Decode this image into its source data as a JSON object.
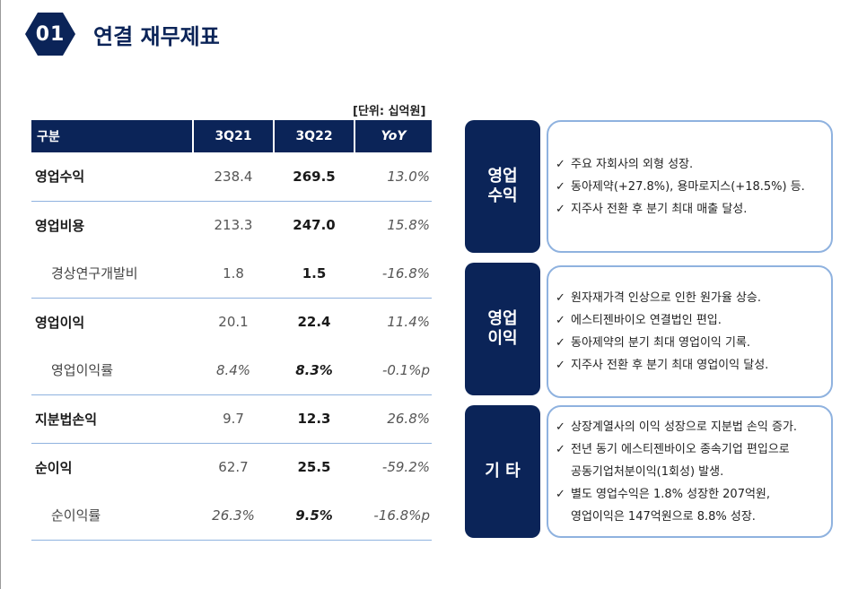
{
  "header": {
    "number": "01",
    "title": "연결 재무제표"
  },
  "unit": "[단위: 십억원]",
  "table": {
    "headers": [
      "구분",
      "3Q21",
      "3Q22",
      "YoY"
    ],
    "rows": [
      {
        "label": "영업수익",
        "prev": "238.4",
        "cur": "269.5",
        "yoy": "13.0%"
      },
      {
        "label": "영업비용",
        "prev": "213.3",
        "cur": "247.0",
        "yoy": "15.8%"
      },
      {
        "label": "경상연구개발비",
        "prev": "1.8",
        "cur": "1.5",
        "yoy": "-16.8%"
      },
      {
        "label": "영업이익",
        "prev": "20.1",
        "cur": "22.4",
        "yoy": "11.4%"
      },
      {
        "label": "영업이익률",
        "prev": "8.4%",
        "cur": "8.3%",
        "yoy": "-0.1%p"
      },
      {
        "label": "지분법손익",
        "prev": "9.7",
        "cur": "12.3",
        "yoy": "26.8%"
      },
      {
        "label": "순이익",
        "prev": "62.7",
        "cur": "25.5",
        "yoy": "-59.2%"
      },
      {
        "label": "순이익률",
        "prev": "26.3%",
        "cur": "9.5%",
        "yoy": "-16.8%p"
      }
    ]
  },
  "check_mark": "✓",
  "boxes": {
    "revenue": {
      "tag_line1": "영업",
      "tag_line2": "수익",
      "bullets": [
        "주요 자회사의 외형 성장.",
        "동아제약(+27.8%), 용마로지스(+18.5%) 등.",
        "지주사 전환 후 분기 최대 매출 달성."
      ]
    },
    "profit": {
      "tag_line1": "영업",
      "tag_line2": "이익",
      "bullets": [
        "원자재가격 인상으로 인한 원가율 상승.",
        "에스티젠바이오 연결법인 편입.",
        "동아제약의 분기 최대 영업이익 기록.",
        "지주사 전환 후 분기 최대 영업이익 달성."
      ]
    },
    "other": {
      "tag": "기 타",
      "bullet1": "상장계열사의 이익 성장으로 지분법 손익 증가.",
      "bullet2_l1": "전년 동기 에스티젠바이오 종속기업 편입으로",
      "bullet2_l2": "공동기업처분이익(1회성) 발생.",
      "bullet3_l1": "별도 영업수익은 1.8% 성장한 207억원,",
      "bullet3_l2": "영업이익은 147억원으로 8.8% 성장."
    }
  }
}
